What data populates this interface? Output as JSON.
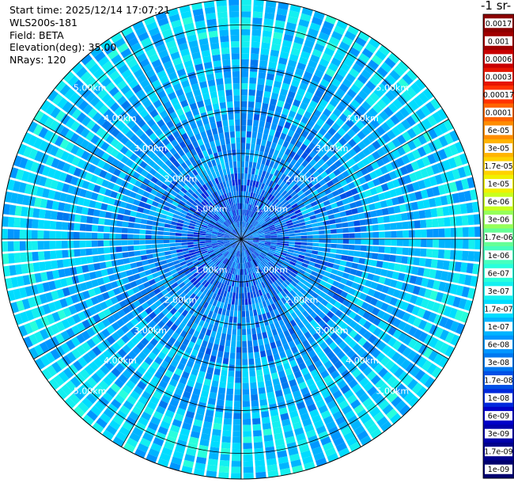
{
  "header": {
    "start_time": "Start time: 2025/12/14 17:07:21",
    "instrument": "WLS200s-181",
    "field": "Field: BETA",
    "elevation": "Elevation(deg): 35.00",
    "nrays": "NRays: 120"
  },
  "colorbar": {
    "title": "-1 sr-",
    "ticks": [
      "0.0017",
      "0.001",
      "0.0006",
      "0.0003",
      "0.00017",
      "0.0001",
      "6e-05",
      "3e-05",
      "1.7e-05",
      "1e-05",
      "6e-06",
      "3e-06",
      "1.7e-06",
      "1e-06",
      "6e-07",
      "3e-07",
      "1.7e-07",
      "1e-07",
      "6e-08",
      "3e-08",
      "1.7e-08",
      "1e-08",
      "6e-09",
      "3e-09",
      "1.7e-09",
      "1e-09"
    ],
    "colors": [
      "#8b0000",
      "#a00000",
      "#c80000",
      "#e61400",
      "#ff3200",
      "#ff6400",
      "#ff8c00",
      "#ffb400",
      "#ffd200",
      "#f0f000",
      "#c8ff1e",
      "#96ff5a",
      "#64ff96",
      "#46ffbe",
      "#28ffdc",
      "#14f0f0",
      "#00dcff",
      "#00b4ff",
      "#0096ff",
      "#0078f0",
      "#0050e6",
      "#0028dc",
      "#0000c8",
      "#0000aa",
      "#00008c",
      "#00006e"
    ]
  },
  "chart_data": {
    "type": "heatmap",
    "projection": "PPI polar scan",
    "field": "BETA",
    "elevation_deg": 35.0,
    "nrays": 120,
    "range_rings_km": [
      1,
      2,
      3,
      4,
      5
    ],
    "range_labels": [
      "1.00km",
      "2.00km",
      "3.00km",
      "4.00km",
      "5.00km"
    ],
    "max_range_km": 5.6,
    "color_scale": "log",
    "value_range": [
      1e-09,
      0.0017
    ],
    "dominant_values_by_range": [
      {
        "range_km": [
          0,
          1.5
        ],
        "typical": 3e-08
      },
      {
        "range_km": [
          1.5,
          3.0
        ],
        "typical": 6e-08
      },
      {
        "range_km": [
          3.0,
          4.3
        ],
        "typical": 1e-07
      },
      {
        "range_km": [
          4.3,
          5.6
        ],
        "typical": 1.7e-07
      }
    ]
  }
}
